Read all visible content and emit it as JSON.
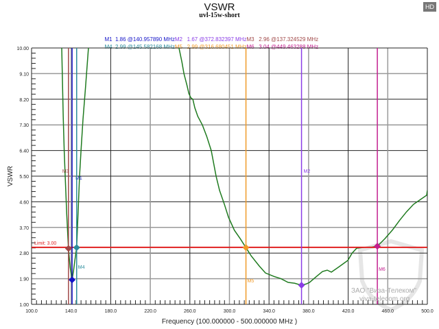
{
  "badge": "HD",
  "watermark": {
    "line1": "ЗАО \"Виза-Телеком\"",
    "line2": "viva-telecom.org"
  },
  "legend": [
    [
      {
        "marker": "M1",
        "text": "M1  1.86 @140.957890 MHz"
      },
      {
        "marker": "M2",
        "text": "M2   1.67 @372.832397 MHz"
      },
      {
        "marker": "M3",
        "text": "M3   2.96 @137.324529 MHz"
      }
    ],
    [
      {
        "marker": "M4",
        "text": "M4  2.99 @145.582168 MHz"
      },
      {
        "marker": "M5",
        "text": "M5   2.99 @316.680451 MHz"
      },
      {
        "marker": "M6",
        "text": "M6   3.04 @449.463288 MHz"
      }
    ]
  ],
  "chart_data": {
    "type": "line",
    "title": "VSWR",
    "subtitle": "uvl-15w-short",
    "xlabel": "Frequency (100.000000 - 500.000000 MHz )",
    "ylabel": "VSWR",
    "xlim": [
      100,
      500
    ],
    "ylim": [
      1,
      10
    ],
    "grid": true,
    "x_ticks": [
      "100.0",
      "140.0",
      "180.0",
      "220.0",
      "260.0",
      "300.0",
      "340.0",
      "380.0",
      "420.0",
      "460.0",
      "500.0"
    ],
    "y_ticks": [
      "10.00",
      "9.10",
      "8.20",
      "7.30",
      "6.40",
      "5.50",
      "4.60",
      "3.70",
      "2.80",
      "1.90",
      "1.00"
    ],
    "series_color": "#1e7a1e",
    "segments": [
      [
        [
          130.5,
          10
        ],
        [
          132,
          7.6
        ],
        [
          133,
          6.4
        ],
        [
          134,
          5.5
        ],
        [
          135.5,
          4.2
        ],
        [
          137.3,
          2.96
        ],
        [
          139,
          2.3
        ],
        [
          140.96,
          1.86
        ],
        [
          142.5,
          2.2
        ],
        [
          144,
          2.6
        ],
        [
          145.58,
          2.99
        ],
        [
          147,
          4.2
        ],
        [
          148.5,
          5.5
        ],
        [
          150,
          6.4
        ],
        [
          152,
          7.5
        ],
        [
          154.5,
          8.6
        ],
        [
          157.5,
          10
        ]
      ],
      [
        [
          249,
          10
        ],
        [
          252,
          9.5
        ],
        [
          254,
          9.1
        ],
        [
          257,
          8.7
        ],
        [
          259,
          8.4
        ],
        [
          261,
          8.25
        ],
        [
          263,
          8.2
        ],
        [
          265,
          7.9
        ],
        [
          268,
          7.6
        ],
        [
          272.6,
          7.3
        ],
        [
          277,
          6.9
        ],
        [
          281.6,
          6.4
        ],
        [
          286.5,
          5.5
        ],
        [
          290,
          5.0
        ],
        [
          295,
          4.5
        ],
        [
          299,
          4.06
        ],
        [
          305,
          3.6
        ],
        [
          311,
          3.3
        ],
        [
          316.68,
          2.99
        ],
        [
          322,
          2.7
        ],
        [
          330,
          2.35
        ],
        [
          336.4,
          2.1
        ],
        [
          345,
          1.98
        ],
        [
          352,
          1.9
        ],
        [
          359.3,
          1.77
        ],
        [
          366,
          1.74
        ],
        [
          372.83,
          1.67
        ],
        [
          378,
          1.72
        ],
        [
          381,
          1.77
        ],
        [
          388,
          1.98
        ],
        [
          394,
          2.15
        ],
        [
          398.8,
          2.2
        ],
        [
          403,
          2.13
        ],
        [
          410,
          2.3
        ],
        [
          416,
          2.45
        ],
        [
          419.6,
          2.54
        ],
        [
          424,
          2.8
        ],
        [
          428.6,
          2.97
        ],
        [
          436,
          3.0
        ],
        [
          444,
          3.01
        ],
        [
          449.46,
          3.04
        ],
        [
          457,
          3.3
        ],
        [
          465,
          3.62
        ],
        [
          472,
          3.95
        ],
        [
          479,
          4.25
        ],
        [
          486,
          4.51
        ],
        [
          493,
          4.68
        ],
        [
          499.3,
          4.83
        ],
        [
          500,
          5.0
        ]
      ]
    ],
    "limit": {
      "value": 3.0,
      "label": "Limit: 3.00",
      "color": "#e02020"
    },
    "markers": [
      {
        "name": "M1",
        "x": 140.95789,
        "y": 1.86,
        "color": "#1414c8"
      },
      {
        "name": "M2",
        "x": 372.832397,
        "y": 1.67,
        "color": "#8a3ce6"
      },
      {
        "name": "M3",
        "x": 137.324529,
        "y": 2.96,
        "color": "#a04848"
      },
      {
        "name": "M4",
        "x": 145.582168,
        "y": 2.99,
        "color": "#2a8c9c"
      },
      {
        "name": "M5",
        "x": 316.680451,
        "y": 2.99,
        "color": "#f09a28"
      },
      {
        "name": "M6",
        "x": 449.463288,
        "y": 3.04,
        "color": "#c21e8e"
      }
    ]
  }
}
